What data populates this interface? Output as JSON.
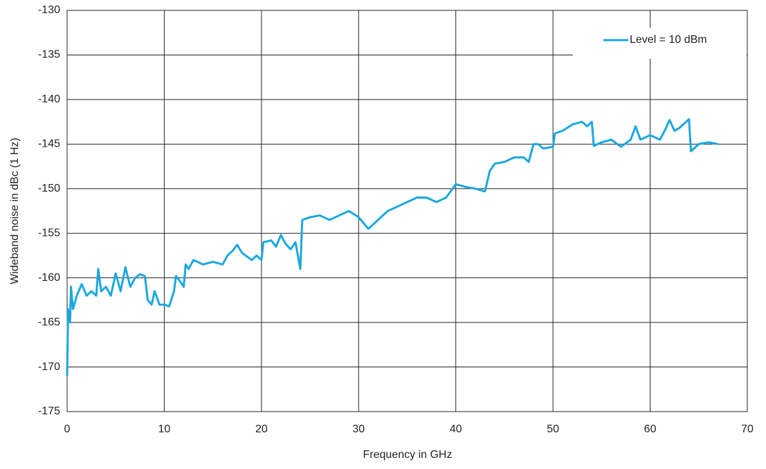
{
  "chart_data": {
    "type": "line",
    "xlabel": "Frequency in GHz",
    "ylabel": "Wideband noise in dBc (1 Hz)",
    "xlim": [
      0,
      70
    ],
    "xticks": [
      0,
      10,
      20,
      30,
      40,
      50,
      60,
      70
    ],
    "ylim": [
      -175,
      -130
    ],
    "yticks": [
      -175,
      -170,
      -165,
      -160,
      -155,
      -150,
      -145,
      -140,
      -135,
      -130
    ],
    "grid": true,
    "legend": "upper right",
    "series": [
      {
        "name": "Level = 10 dBm",
        "color": "#1aa7e0",
        "x": [
          0,
          0.1,
          0.3,
          0.4,
          0.6,
          1,
          1.5,
          2,
          2.5,
          3,
          3.2,
          3.5,
          4,
          4.5,
          5,
          5.5,
          6,
          6.5,
          7,
          7.5,
          8,
          8.3,
          8.7,
          9,
          9.5,
          10,
          10.5,
          11,
          11.2,
          11.7,
          12,
          12.2,
          12.5,
          13,
          14,
          15,
          16,
          16.5,
          17,
          17.5,
          18,
          19,
          19.5,
          20,
          20.2,
          21,
          21.5,
          22,
          22.5,
          23,
          23.5,
          24,
          24.2,
          25,
          26,
          27,
          28,
          29,
          30,
          31,
          32,
          33,
          34,
          35,
          36,
          37,
          38,
          39,
          40,
          41,
          42,
          43,
          43.5,
          44,
          45,
          46,
          47,
          47.5,
          48,
          48.5,
          49,
          50,
          50.2,
          51,
          52,
          53,
          53.5,
          54,
          54.2,
          55,
          56,
          57,
          58,
          58.5,
          59,
          60,
          61,
          61.5,
          62,
          62.5,
          63,
          64,
          64.2,
          65,
          66,
          67
        ],
        "values": [
          -171,
          -163.5,
          -165,
          -161,
          -163.5,
          -162,
          -160.7,
          -162,
          -161.5,
          -162,
          -159,
          -161.5,
          -161,
          -162,
          -159.5,
          -161.5,
          -158.8,
          -161,
          -160,
          -159.6,
          -159.8,
          -162.5,
          -163,
          -161.5,
          -163,
          -163,
          -163.2,
          -161.5,
          -159.8,
          -160.5,
          -161,
          -158.5,
          -159,
          -158,
          -158.5,
          -158.2,
          -158.5,
          -157.5,
          -157,
          -156.3,
          -157.2,
          -158,
          -157.5,
          -158,
          -156,
          -155.8,
          -156.5,
          -155.2,
          -156.2,
          -156.8,
          -156,
          -159,
          -153.5,
          -153.2,
          -153,
          -153.5,
          -153,
          -152.5,
          -153.2,
          -154.5,
          -153.5,
          -152.5,
          -152,
          -151.5,
          -151,
          -151,
          -151.5,
          -151,
          -149.5,
          -149.8,
          -150,
          -150.3,
          -148,
          -147.2,
          -147,
          -146.5,
          -146.5,
          -147,
          -145,
          -145,
          -145.5,
          -145.3,
          -143.8,
          -143.5,
          -142.8,
          -142.5,
          -143,
          -142.5,
          -145.2,
          -144.8,
          -144.5,
          -145.3,
          -144.5,
          -143,
          -144.5,
          -144,
          -144.5,
          -143.5,
          -142.3,
          -143.5,
          -143.2,
          -142.2,
          -145.8,
          -145,
          -144.8,
          -145
        ]
      }
    ]
  }
}
